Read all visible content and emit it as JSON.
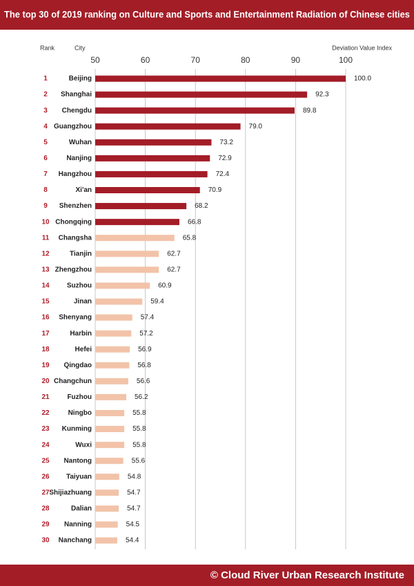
{
  "chart_data": {
    "type": "bar",
    "orientation": "horizontal",
    "title": "The top 30 of 2019 ranking on Culture and Sports and Entertainment Radiation of Chinese cities",
    "rank_header": "Rank",
    "category_header": "City",
    "value_header": "Deviation Value Index",
    "footer": "© Cloud River Urban Research Institute",
    "ranks": [
      1,
      2,
      3,
      4,
      5,
      6,
      7,
      8,
      9,
      10,
      11,
      12,
      13,
      14,
      15,
      16,
      17,
      18,
      19,
      20,
      21,
      22,
      23,
      24,
      25,
      26,
      27,
      28,
      29,
      30
    ],
    "categories": [
      "Beijing",
      "Shanghai",
      "Chengdu",
      "Guangzhou",
      "Wuhan",
      "Nanjing",
      "Hangzhou",
      "Xi'an",
      "Shenzhen",
      "Chongqing",
      "Changsha",
      "Tianjin",
      "Zhengzhou",
      "Suzhou",
      "Jinan",
      "Shenyang",
      "Harbin",
      "Hefei",
      "Qingdao",
      "Changchun",
      "Fuzhou",
      "Ningbo",
      "Kunming",
      "Wuxi",
      "Nantong",
      "Taiyuan",
      "Shijiazhuang",
      "Dalian",
      "Nanning",
      "Nanchang"
    ],
    "values": [
      100.0,
      92.3,
      89.8,
      79.0,
      73.2,
      72.9,
      72.4,
      70.9,
      68.2,
      66.8,
      65.8,
      62.7,
      62.7,
      60.9,
      59.4,
      57.4,
      57.2,
      56.9,
      56.8,
      56.6,
      56.2,
      55.8,
      55.8,
      55.8,
      55.6,
      54.8,
      54.7,
      54.7,
      54.5,
      54.4
    ],
    "value_labels": [
      "100.0",
      "92.3",
      "89.8",
      "79.0",
      "73.2",
      "72.9",
      "72.4",
      "70.9",
      "68.2",
      "66.8",
      "65.8",
      "62.7",
      "62.7",
      "60.9",
      "59.4",
      "57.4",
      "57.2",
      "56.9",
      "56.8",
      "56.6",
      "56.2",
      "55.8",
      "55.8",
      "55.8",
      "55.6",
      "54.8",
      "54.7",
      "54.7",
      "54.5",
      "54.4"
    ],
    "colors": [
      "#a31d27",
      "#a31d27",
      "#a31d27",
      "#a31d27",
      "#a31d27",
      "#a31d27",
      "#a31d27",
      "#a31d27",
      "#a31d27",
      "#a31d27",
      "#f2c3a9",
      "#f2c3a9",
      "#f2c3a9",
      "#f2c3a9",
      "#f2c3a9",
      "#f2c3a9",
      "#f2c3a9",
      "#f2c3a9",
      "#f2c3a9",
      "#f2c3a9",
      "#f2c3a9",
      "#f2c3a9",
      "#f2c3a9",
      "#f2c3a9",
      "#f2c3a9",
      "#f2c3a9",
      "#f2c3a9",
      "#f2c3a9",
      "#f2c3a9",
      "#f2c3a9"
    ],
    "xlim": [
      50,
      100
    ],
    "xticks": [
      50,
      60,
      70,
      80,
      90,
      100
    ],
    "grid": true
  }
}
